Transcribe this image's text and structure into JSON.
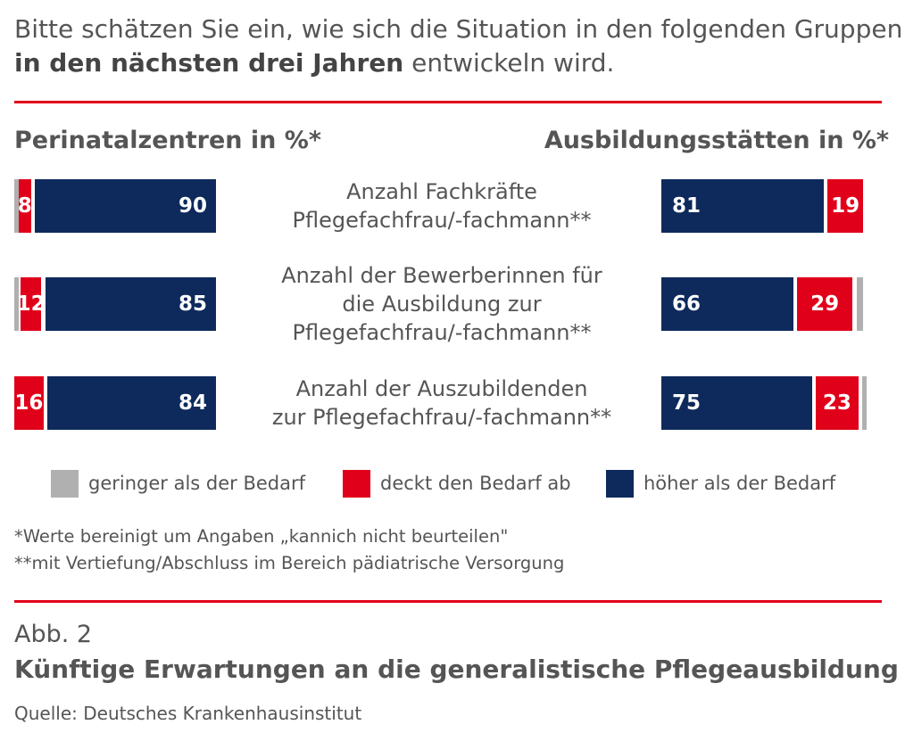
{
  "intro": {
    "line1": "Bitte schätzen Sie ein, wie sich die Situation in den folgenden Gruppen",
    "line2_bold": "in den nächsten drei Jahren",
    "line2_rest": " entwickeln wird."
  },
  "colors": {
    "lower": "#b0b0b0",
    "covers": "#e1001a",
    "higher": "#0e2a5c",
    "rule": "#e1001a"
  },
  "chart_data": {
    "type": "bar",
    "stacked": true,
    "orientation": "horizontal",
    "categories": [
      "Anzahl Fachkräfte Pflegefachfrau/-fachmann**",
      "Anzahl der Bewerberinnen für die Ausbildung zur Pflegefachfrau/-fachmann**",
      "Anzahl der Auszubildenden zur Pflegefachfrau/-fachmann**"
    ],
    "category_lines": [
      [
        "Anzahl Fachkräfte",
        "Pflegefachfrau/-fachmann**"
      ],
      [
        "Anzahl der Bewerberinnen für",
        "die Ausbildung zur",
        "Pflegefachfrau/-fachmann**"
      ],
      [
        "Anzahl der Auszubildenden",
        "zur Pflegefachfrau/-fachmann**"
      ]
    ],
    "legend": [
      "geringer als der Bedarf",
      "deckt den Bedarf ab",
      "höher als der Bedarf"
    ],
    "panels": [
      {
        "title": "Perinatalzentren in %*",
        "series": [
          {
            "name": "geringer als der Bedarf",
            "values": [
              2,
              3,
              0
            ]
          },
          {
            "name": "deckt den Bedarf ab",
            "values": [
              8,
              12,
              16
            ]
          },
          {
            "name": "höher als der Bedarf",
            "values": [
              90,
              85,
              84
            ]
          }
        ]
      },
      {
        "title": "Ausbildungsstätten in %*",
        "series": [
          {
            "name": "höher als der Bedarf",
            "values": [
              81,
              66,
              75
            ]
          },
          {
            "name": "deckt den Bedarf ab",
            "values": [
              19,
              29,
              23
            ]
          },
          {
            "name": "geringer als der Bedarf",
            "values": [
              0,
              5,
              2
            ]
          }
        ]
      }
    ]
  },
  "notes": [
    "*Werte bereinigt um Angaben „kannich nicht beurteilen\"",
    "**mit Vertiefung/Abschluss im Bereich pädiatrische Versorgung"
  ],
  "figure": {
    "number": "Abb. 2",
    "title": "Künftige Erwartungen an die generalistische Pflegeausbildung",
    "source": "Quelle: Deutsches Krankenhausinstitut"
  }
}
